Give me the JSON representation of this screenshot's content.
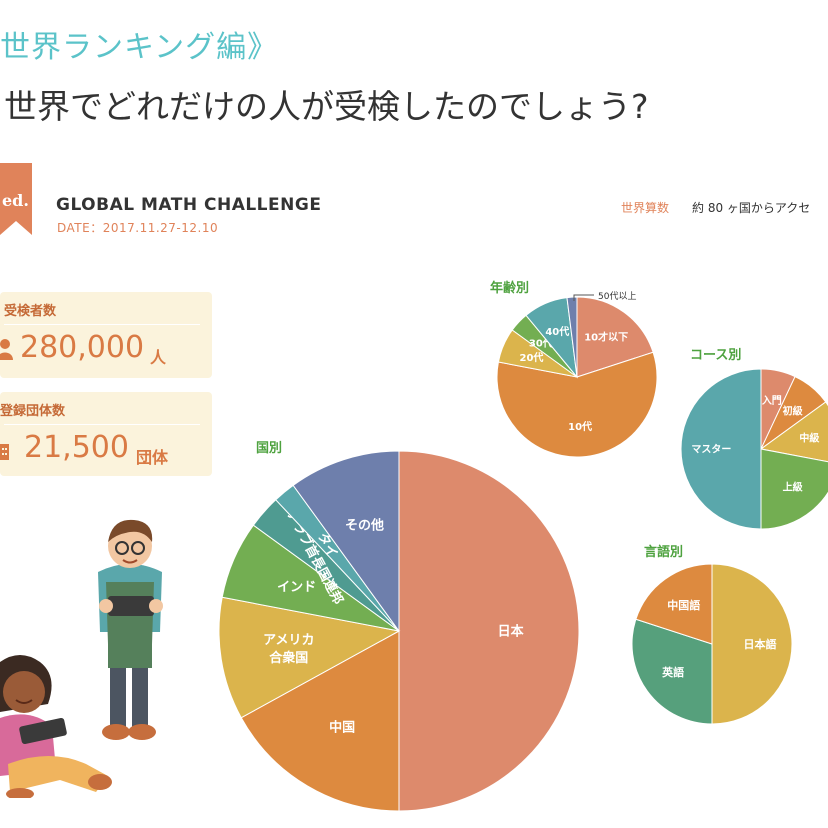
{
  "header": {
    "section_heading": "世界ランキング編》",
    "question": "世界でどれだけの人が受検したのでしょう?"
  },
  "event": {
    "edition_label": "ed.",
    "name": "GLOBAL MATH CHALLENGE",
    "date": "DATE：2017.11.27-12.10",
    "access_label": "世界算数",
    "access_text": "約 80 ヶ国からアクセ"
  },
  "stats": {
    "examinees": {
      "label": "受検者数",
      "value": "280,000",
      "unit": "人",
      "icon": "person-icon"
    },
    "groups": {
      "label": "登録団体数",
      "value": "21,500",
      "unit": "団体",
      "icon": "building-icon"
    }
  },
  "colors": {
    "accent_teal": "#5bc3c9",
    "accent_orange": "#e0835a",
    "card_bg": "#fbf3dc",
    "title_green": "#4ea23f"
  },
  "chart_data": [
    {
      "type": "pie",
      "title": "国別",
      "labels": [
        "日本",
        "中国",
        "アメリカ合衆国",
        "インド",
        "アラブ首長国連邦",
        "タイ",
        "その他"
      ],
      "values": [
        50,
        17,
        11,
        7,
        3,
        2,
        10
      ],
      "colors": [
        "#dd8a6c",
        "#dd8a3f",
        "#dbb44c",
        "#73ae52",
        "#4f9b91",
        "#5aa7ab",
        "#6e7fac"
      ],
      "label_text": [
        "日本",
        "中国",
        "アメリカ\n合衆国",
        "インド",
        "アラブ首長国連邦",
        "タイ",
        "その他"
      ]
    },
    {
      "type": "pie",
      "title": "年齢別",
      "labels": [
        "10才以下",
        "10代",
        "20代",
        "30代",
        "40代",
        "50代以上"
      ],
      "values": [
        20,
        58,
        7,
        4,
        9,
        2
      ],
      "colors": [
        "#dd8a6c",
        "#dd8a3f",
        "#dbb44c",
        "#73ae52",
        "#5aa7ab",
        "#6e7fac"
      ],
      "label_text": [
        "10才以下",
        "10代",
        "20代",
        "30代",
        "40代",
        "50代以上"
      ]
    },
    {
      "type": "pie",
      "title": "コース別",
      "labels": [
        "入門",
        "初級",
        "中級",
        "上級",
        "マスター"
      ],
      "values": [
        7,
        8,
        13,
        22,
        50
      ],
      "colors": [
        "#dd8a6c",
        "#dd8a3f",
        "#dbb44c",
        "#73ae52",
        "#5aa7ab"
      ],
      "label_text": [
        "入門",
        "初級",
        "中級",
        "上級",
        "マスター"
      ]
    },
    {
      "type": "pie",
      "title": "言語別",
      "labels": [
        "日本語",
        "英語",
        "中国語"
      ],
      "values": [
        50,
        30,
        20
      ],
      "colors": [
        "#dbb44c",
        "#56a07c",
        "#dd8a3f"
      ],
      "label_text": [
        "日本語",
        "英語",
        "中国語"
      ]
    }
  ]
}
